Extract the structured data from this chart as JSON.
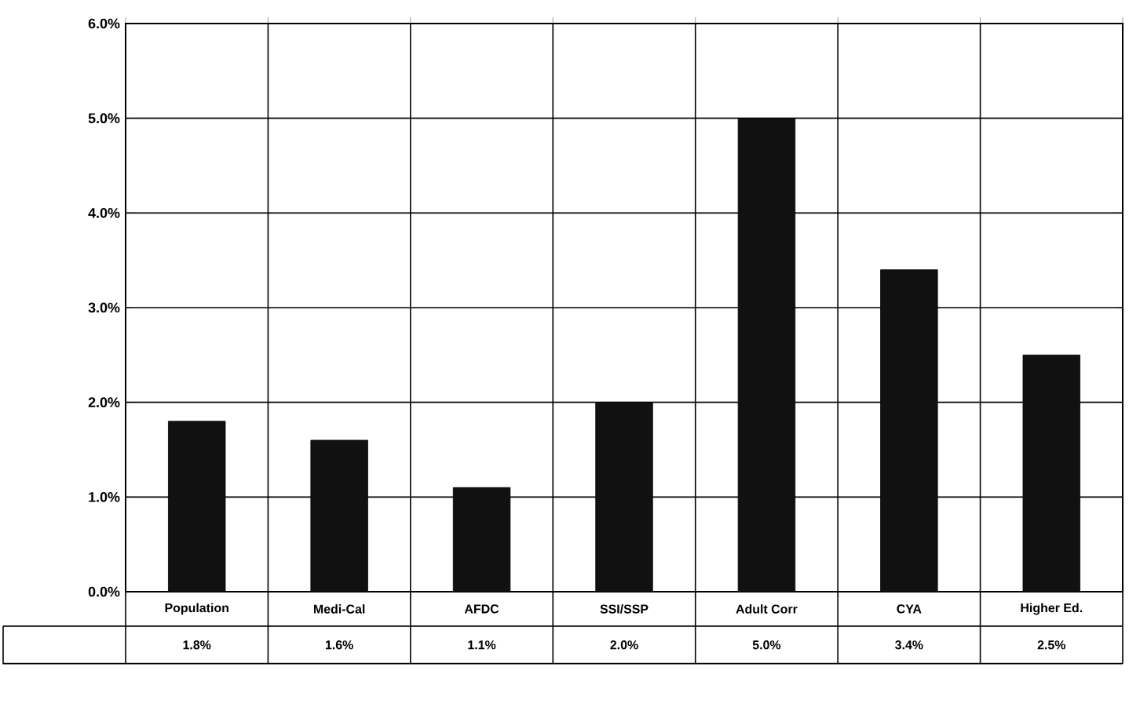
{
  "chart_data": {
    "type": "bar",
    "categories": [
      "Population",
      "Medi-Cal",
      "AFDC",
      "SSI/SSP",
      "Adult Corr",
      "CYA",
      "Higher Ed."
    ],
    "values": [
      1.8,
      1.6,
      1.1,
      2.0,
      5.0,
      3.4,
      2.5
    ],
    "value_labels": [
      "1.8%",
      "1.6%",
      "1.1%",
      "2.0%",
      "5.0%",
      "3.4%",
      "2.5%"
    ],
    "color": "#111111",
    "ylim": [
      0,
      6
    ],
    "yticks": [
      {
        "value": 0,
        "label": "0.0%"
      },
      {
        "value": 1,
        "label": "1.0%"
      },
      {
        "value": 2,
        "label": "2.0%"
      },
      {
        "value": 3,
        "label": "3.0%"
      },
      {
        "value": 4,
        "label": "4.0%"
      },
      {
        "value": 5,
        "label": "5.0%"
      },
      {
        "value": 6,
        "label": "6.0%"
      }
    ],
    "grid": true
  }
}
